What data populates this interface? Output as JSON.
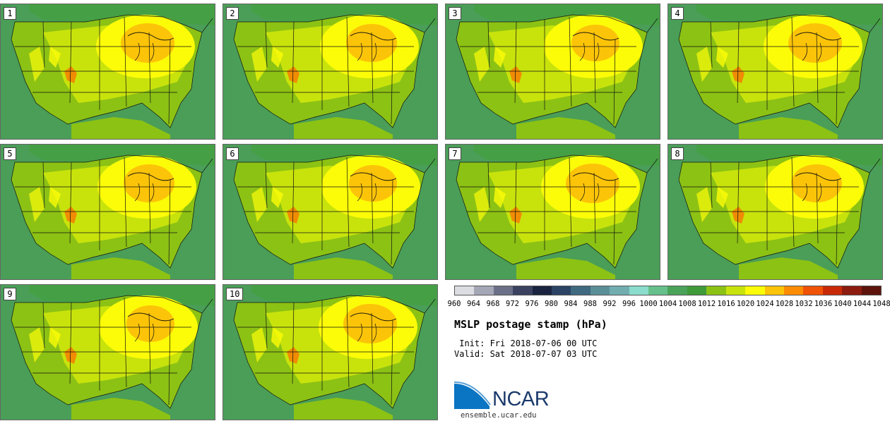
{
  "panels": [
    {
      "label": "1"
    },
    {
      "label": "2"
    },
    {
      "label": "3"
    },
    {
      "label": "4"
    },
    {
      "label": "5"
    },
    {
      "label": "6"
    },
    {
      "label": "7"
    },
    {
      "label": "8"
    },
    {
      "label": "9"
    },
    {
      "label": "10"
    }
  ],
  "colorbar": {
    "colors": [
      "#dcdde3",
      "#a4a7b5",
      "#6b7088",
      "#3a4260",
      "#1a2440",
      "#2b4466",
      "#3f6a80",
      "#5a8f98",
      "#72adb0",
      "#8adccc",
      "#66c08c",
      "#4aa35a",
      "#3f9a3a",
      "#8cc214",
      "#c8e30c",
      "#fcfc08",
      "#fcc408",
      "#fc8c04",
      "#f05208",
      "#c82a08",
      "#8c1c10",
      "#5c140c"
    ],
    "ticks": [
      "960",
      "964",
      "968",
      "972",
      "976",
      "980",
      "984",
      "988",
      "992",
      "996",
      "1000",
      "1004",
      "1008",
      "1012",
      "1016",
      "1020",
      "1024",
      "1028",
      "1032",
      "1036",
      "1040",
      "1044",
      "1048"
    ]
  },
  "title": "MSLP postage stamp (hPa)",
  "init": " Init: Fri 2018-07-06 00 UTC",
  "valid": "Valid: Sat 2018-07-07 03 UTC",
  "logo": {
    "name": "NCAR",
    "url": "ensemble.ucar.edu"
  },
  "map_colors": {
    "ocean": "#4a9e58",
    "canada": "#45a045",
    "west_mid": "#8cc214",
    "west_light": "#c8e30c",
    "east_mid": "#c8e30c",
    "high_ring": "#fcfc08",
    "high_core": "#fcc408",
    "rockies": "#f08c04",
    "gulf": "#8cc214"
  }
}
